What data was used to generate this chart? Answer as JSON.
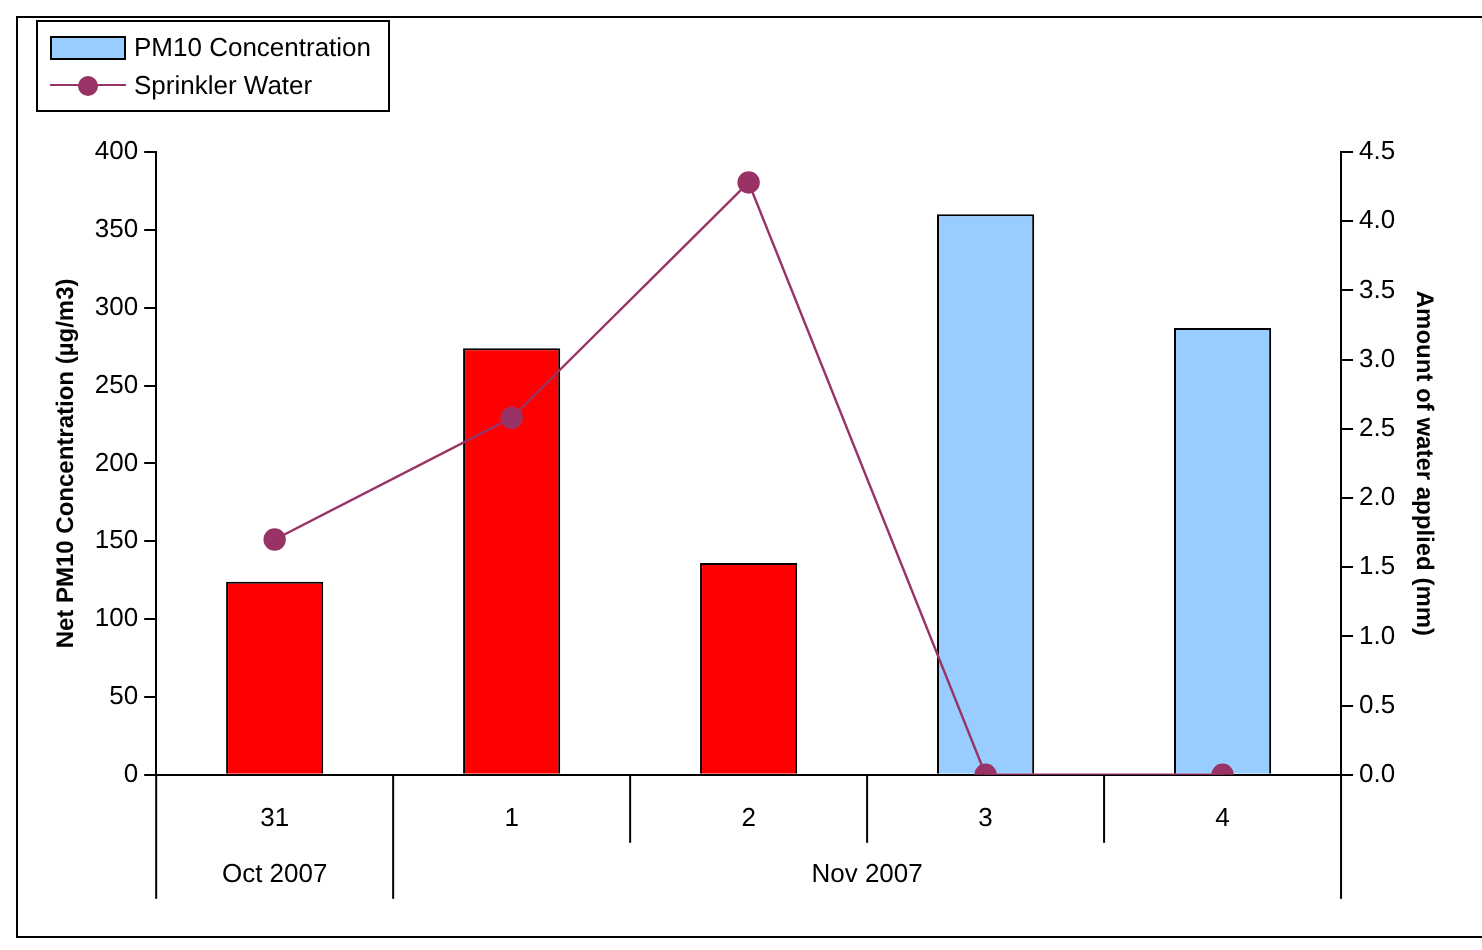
{
  "chart_data": {
    "type": "bar",
    "categories": [
      "31",
      "1",
      "2",
      "3",
      "4"
    ],
    "series": [
      {
        "name": "PM10 Concentration",
        "color": "#99ccff",
        "colors": [
          "#ff0000",
          "#ff0000",
          "#ff0000",
          "#99ccff",
          "#99ccff"
        ],
        "values": [
          124,
          274,
          136,
          360,
          287
        ]
      },
      {
        "type": "line",
        "name": "Sprinkler Water",
        "color": "#993366",
        "axis": "y2",
        "values": [
          1.7,
          2.58,
          4.28,
          0,
          0
        ]
      }
    ],
    "ylabel": "Net PM10 Concentration (µg/m3)",
    "y2label": "Amount of water applied (mm)",
    "ylim": [
      0,
      400
    ],
    "yticks": [
      0,
      50,
      100,
      150,
      200,
      250,
      300,
      350,
      400
    ],
    "y2lim": [
      0,
      4.5
    ],
    "y2ticks": [
      {
        "value": 0,
        "label": "0.0"
      },
      {
        "value": 0.5,
        "label": "0.5"
      },
      {
        "value": 1,
        "label": "1.0"
      },
      {
        "value": 1.5,
        "label": "1.5"
      },
      {
        "value": 2,
        "label": "2.0"
      },
      {
        "value": 2.5,
        "label": "2.5"
      },
      {
        "value": 3,
        "label": "3.0"
      },
      {
        "value": 3.5,
        "label": "3.5"
      },
      {
        "value": 4,
        "label": "4.0"
      },
      {
        "value": 4.5,
        "label": "4.5"
      }
    ],
    "annotations": [
      "Oct 2007",
      "Nov 2007"
    ],
    "grid": false,
    "legend": "top left",
    "marker": "circle",
    "line_style": "solid"
  }
}
